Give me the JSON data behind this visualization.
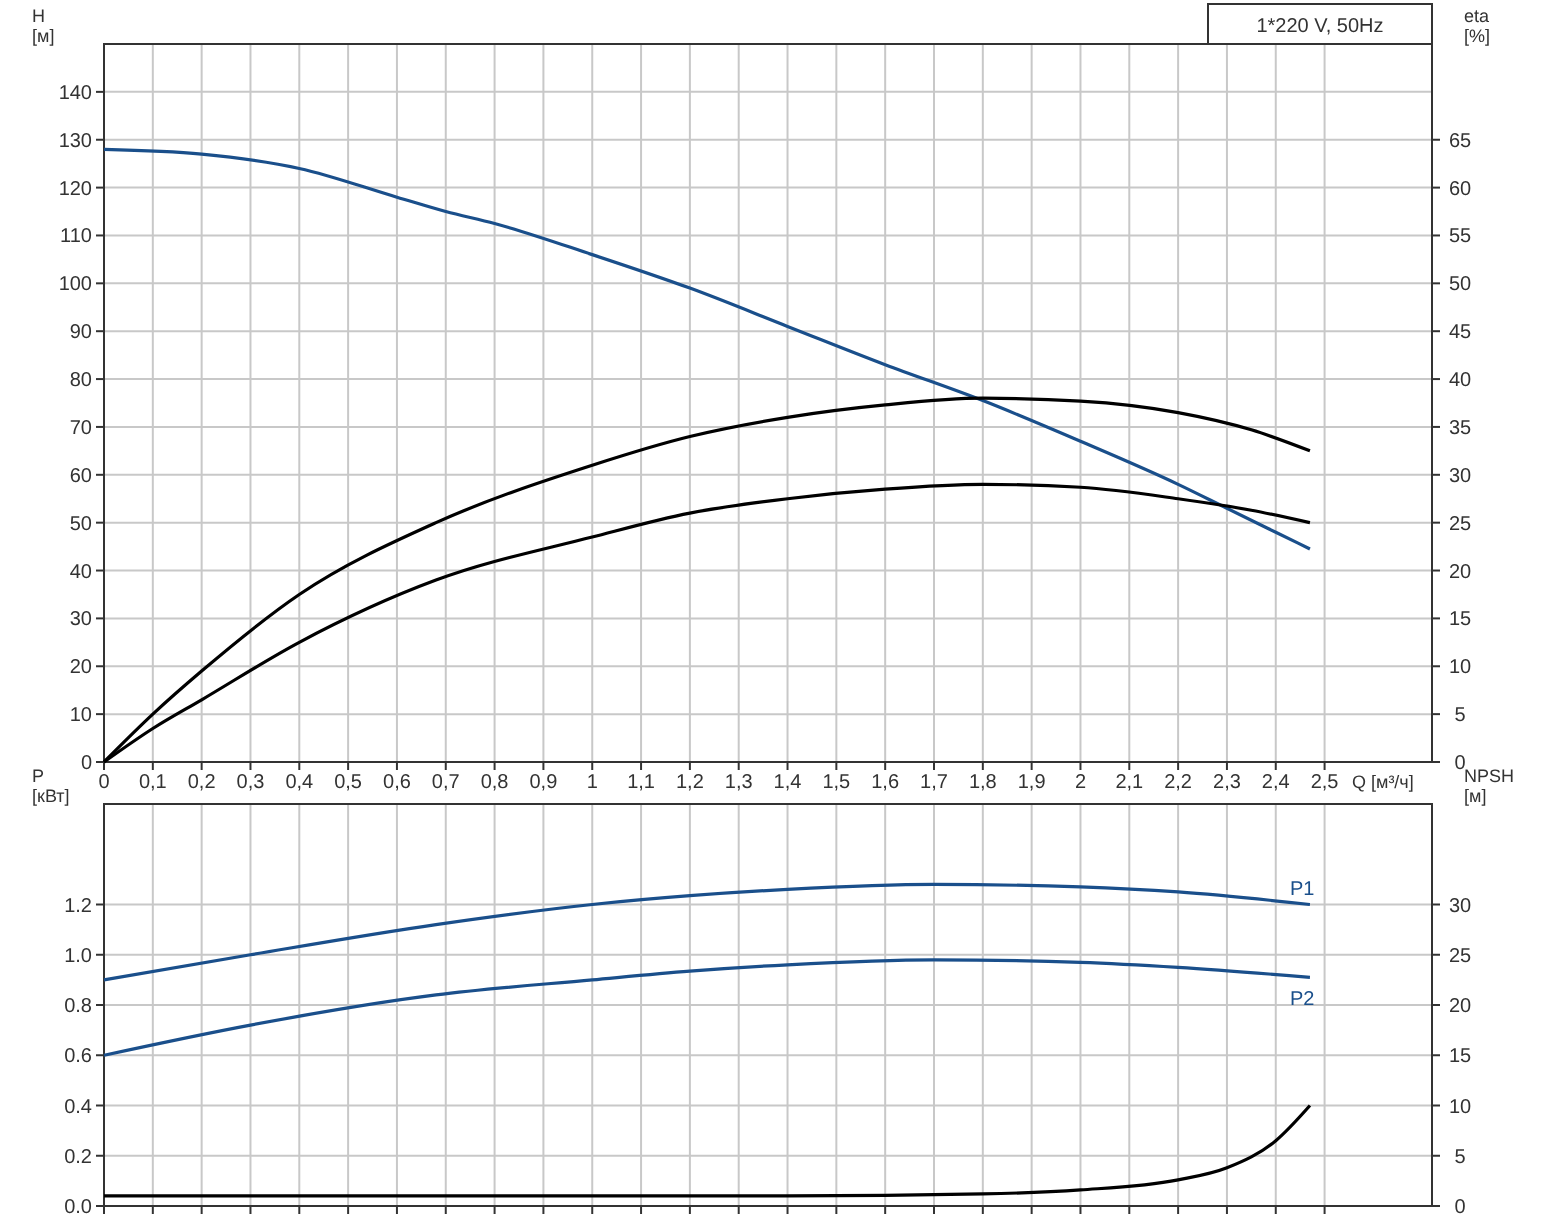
{
  "chart_data": [
    {
      "type": "line",
      "title": "1*220 V, 50Hz",
      "xlabel": "Q [м³/ч]",
      "ylabel": "H [м]",
      "y2label": "eta [%]",
      "grid": true,
      "xlim": [
        0,
        2.72
      ],
      "xticks": [
        0,
        {
          "value": 0.1,
          "label": "0,1"
        },
        {
          "value": 0.2,
          "label": "0,2"
        },
        {
          "value": 0.3,
          "label": "0,3"
        },
        {
          "value": 0.4,
          "label": "0,4"
        },
        {
          "value": 0.5,
          "label": "0,5"
        },
        {
          "value": 0.6,
          "label": "0,6"
        },
        {
          "value": 0.7,
          "label": "0,7"
        },
        {
          "value": 0.8,
          "label": "0,8"
        },
        {
          "value": 0.9,
          "label": "0,9"
        },
        1,
        {
          "value": 1.1,
          "label": "1,1"
        },
        {
          "value": 1.2,
          "label": "1,2"
        },
        {
          "value": 1.3,
          "label": "1,3"
        },
        {
          "value": 1.4,
          "label": "1,4"
        },
        {
          "value": 1.5,
          "label": "1,5"
        },
        {
          "value": 1.6,
          "label": "1,6"
        },
        {
          "value": 1.7,
          "label": "1,7"
        },
        {
          "value": 1.8,
          "label": "1,8"
        },
        {
          "value": 1.9,
          "label": "1,9"
        },
        2,
        {
          "value": 2.1,
          "label": "2,1"
        },
        {
          "value": 2.2,
          "label": "2,2"
        },
        {
          "value": 2.3,
          "label": "2,3"
        },
        {
          "value": 2.4,
          "label": "2,4"
        },
        {
          "value": 2.5,
          "label": "2,5"
        }
      ],
      "ylim": [
        0,
        150
      ],
      "yticks": [
        0,
        10,
        20,
        30,
        40,
        50,
        60,
        70,
        80,
        90,
        100,
        110,
        120,
        130,
        140
      ],
      "y2lim": [
        0,
        75
      ],
      "y2ticks": [
        0,
        5,
        10,
        15,
        20,
        25,
        30,
        35,
        40,
        45,
        50,
        55,
        60,
        65
      ],
      "series": [
        {
          "color": "#1a4f8b",
          "x": [
            0,
            0.2,
            0.4,
            0.6,
            0.7,
            0.8,
            1.0,
            1.2,
            1.4,
            1.6,
            1.8,
            2.0,
            2.2,
            2.3,
            2.4,
            2.47
          ],
          "values": [
            128,
            127,
            124,
            118,
            115,
            112.5,
            106,
            99,
            91,
            83,
            75.5,
            67,
            58,
            53,
            48,
            44.5
          ]
        },
        {
          "color": "#000000",
          "axis": "y2",
          "x": [
            0,
            0.1,
            0.2,
            0.4,
            0.68,
            1.0,
            1.2,
            1.4,
            1.6,
            1.8,
            2.0,
            2.2,
            2.35,
            2.47
          ],
          "values": [
            0,
            5,
            9.5,
            17.5,
            25,
            31,
            34,
            36,
            37.3,
            38,
            37.7,
            36.5,
            34.7,
            32.5
          ]
        },
        {
          "color": "#000000",
          "axis": "y2",
          "x": [
            0,
            0.1,
            0.2,
            0.4,
            0.68,
            1.0,
            1.2,
            1.4,
            1.6,
            1.8,
            2.0,
            2.2,
            2.35,
            2.47
          ],
          "values": [
            0,
            3.5,
            6.5,
            12.5,
            19,
            23.5,
            26,
            27.5,
            28.5,
            29,
            28.7,
            27.5,
            26.3,
            25
          ]
        }
      ]
    },
    {
      "type": "line",
      "ylabel": "P [кВт]",
      "y2label": "NPSH [м]",
      "grid": true,
      "tick_labels": "y",
      "xlim": [
        0,
        2.72
      ],
      "xticks": [
        0,
        0.1,
        0.2,
        0.3,
        0.4,
        0.5,
        0.6,
        0.7,
        0.8,
        0.9,
        1,
        1.1,
        1.2,
        1.3,
        1.4,
        1.5,
        1.6,
        1.7,
        1.8,
        1.9,
        2,
        2.1,
        2.2,
        2.3,
        2.4,
        2.5
      ],
      "ylim": [
        0,
        1.6
      ],
      "yticks": [
        {
          "value": 0,
          "label": "0.0"
        },
        0.2,
        0.4,
        0.6,
        0.8,
        {
          "value": 1,
          "label": "1.0"
        },
        1.2
      ],
      "y2lim": [
        0,
        40
      ],
      "y2ticks": [
        0,
        5,
        10,
        15,
        20,
        25,
        30
      ],
      "series": [
        {
          "name": "P1",
          "color": "#1a4f8b",
          "x": [
            0,
            0.3,
            0.68,
            1.0,
            1.2,
            1.4,
            1.7,
            2.0,
            2.2,
            2.47
          ],
          "values": [
            0.9,
            1.0,
            1.12,
            1.2,
            1.235,
            1.26,
            1.28,
            1.27,
            1.25,
            1.2
          ]
        },
        {
          "name": "P2",
          "color": "#1a4f8b",
          "x": [
            0,
            0.3,
            0.68,
            1.0,
            1.2,
            1.4,
            1.7,
            2.0,
            2.2,
            2.47
          ],
          "values": [
            0.6,
            0.72,
            0.84,
            0.9,
            0.935,
            0.96,
            0.98,
            0.97,
            0.95,
            0.91
          ]
        },
        {
          "color": "#000000",
          "axis": "y2",
          "x": [
            0,
            0.68,
            1.0,
            1.4,
            1.8,
            2.0,
            2.2,
            2.3,
            2.4,
            2.47
          ],
          "values": [
            1,
            1,
            1,
            1,
            1.2,
            1.6,
            2.6,
            3.8,
            6.5,
            10
          ]
        }
      ]
    }
  ]
}
